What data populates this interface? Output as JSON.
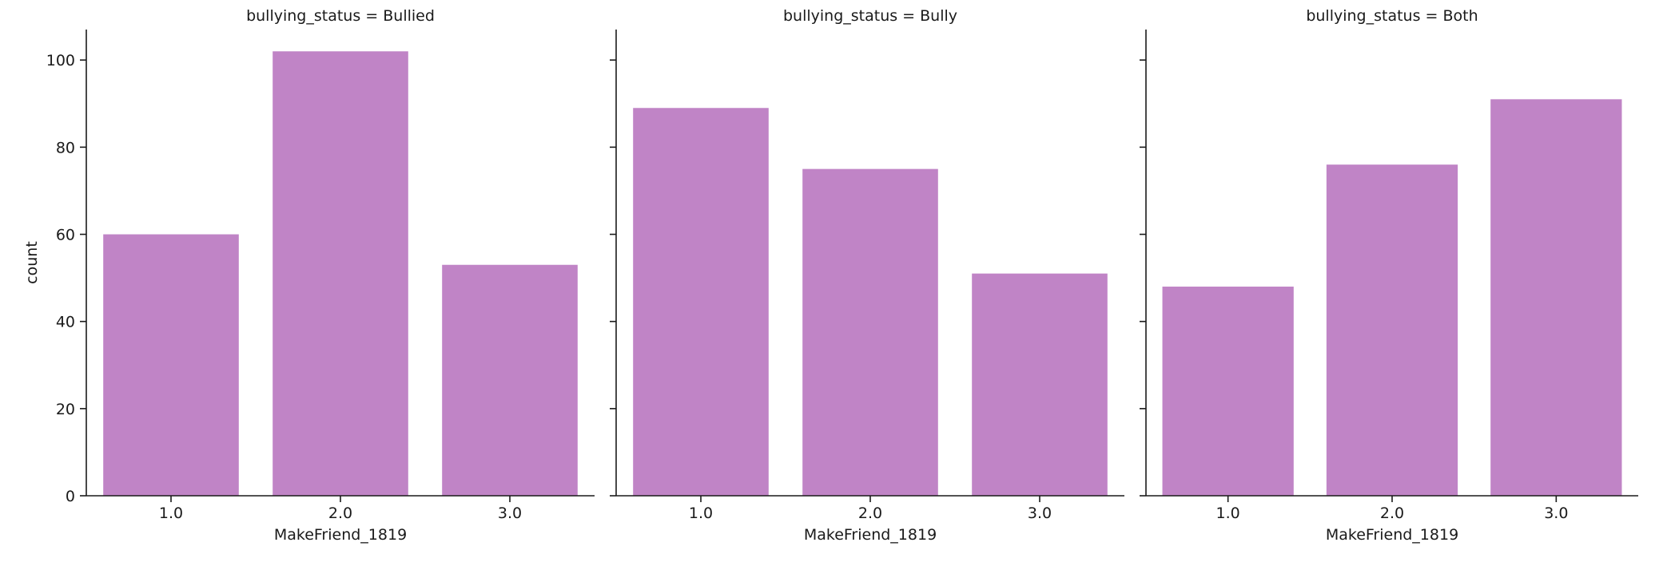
{
  "chart_data": {
    "type": "bar",
    "facet_variable": "bullying_status",
    "bar_color": "#c084c6",
    "axis_color": "#1a1a1a",
    "ylabel": "count",
    "ylim": [
      0,
      107
    ],
    "yticks": [
      0,
      20,
      40,
      60,
      80,
      100
    ],
    "categories": [
      "1.0",
      "2.0",
      "3.0"
    ],
    "panels": [
      {
        "title": "bullying_status = Bullied",
        "xlabel": "MakeFriend_1819",
        "values": [
          60,
          102,
          53
        ]
      },
      {
        "title": "bullying_status = Bully",
        "xlabel": "MakeFriend_1819",
        "values": [
          89,
          75,
          51
        ]
      },
      {
        "title": "bullying_status = Both",
        "xlabel": "MakeFriend_1819",
        "values": [
          48,
          76,
          91
        ]
      }
    ],
    "grid": false,
    "legend": "none"
  }
}
